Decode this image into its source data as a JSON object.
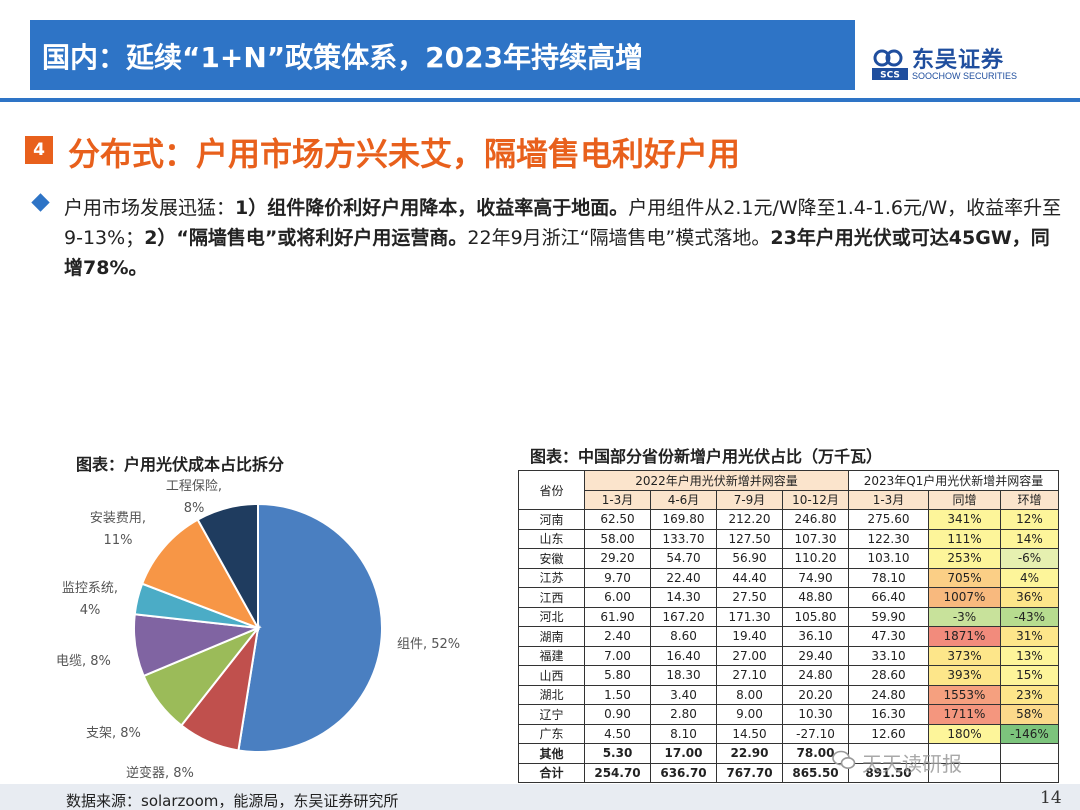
{
  "header": {
    "title": "国内：延续“1+N”政策体系，2023年持续高增",
    "logo_name": "东吴证券",
    "logo_en": "SOOCHOW SECURITIES",
    "logo_mark": "SCS",
    "brand_color": "#2e74c6",
    "accent_color": "#e8601c"
  },
  "section": {
    "number": "4",
    "title": "分布式：户用市场方兴未艾，隔墙售电利好户用"
  },
  "bullet": {
    "icon": "diamond-bullet-icon",
    "part1": "户用市场发展迅猛：",
    "part2": "1）组件降价利好户用降本，收益率高于地面。",
    "part3": "户用组件从2.1元/W降至1.4-1.6元/W，收益率升至9-13%；",
    "part4": "2）“隔墙售电”或将利好户用运营商。",
    "part5": "22年9月浙江“隔墙售电”模式落地。",
    "part6": "23年户用光伏或可达45GW，同增78%。"
  },
  "pie": {
    "title": "图表：户用光伏成本占比拆分",
    "chart_data": {
      "type": "pie",
      "title": "图表：户用光伏成本占比拆分",
      "slices": [
        {
          "label": "组件",
          "value": 52,
          "display": "组件, 52%",
          "color": "#4a7fc1"
        },
        {
          "label": "逆变器",
          "value": 8,
          "display": "逆变器, 8%",
          "color": "#c0504d"
        },
        {
          "label": "支架",
          "value": 8,
          "display": "支架, 8%",
          "color": "#9bbb59"
        },
        {
          "label": "电缆",
          "value": 8,
          "display": "电缆, 8%",
          "color": "#8064a2"
        },
        {
          "label": "监控系统",
          "value": 4,
          "display": "监控系统, 4%",
          "color": "#4bacc6"
        },
        {
          "label": "安装费用",
          "value": 11,
          "display": "安装费用, 11%",
          "color": "#f79646"
        },
        {
          "label": "工程保险",
          "value": 8,
          "display": "工程保险, 8%",
          "color": "#1f3c5f"
        }
      ]
    }
  },
  "table": {
    "title": "图表：中国部分省份新增户用光伏占比（万千瓦）",
    "head": {
      "province": "省份",
      "group2022": "2022年户用光伏新增并网容量",
      "group2023": "2023年Q1户用光伏新增并网容量",
      "q1": "1-3月",
      "q2": "4-6月",
      "q3": "7-9月",
      "q4": "10-12月",
      "q1_2023": "1-3月",
      "yoy": "同增",
      "qoq": "环增"
    },
    "rows": [
      {
        "p": "河南",
        "a": "62.50",
        "b": "169.80",
        "c": "212.20",
        "d": "246.80",
        "e": "275.60",
        "yoy": "341%",
        "qoq": "12%",
        "yoy_c": "#fdf59a",
        "qoq_c": "#fdf59a"
      },
      {
        "p": "山东",
        "a": "58.00",
        "b": "133.70",
        "c": "127.50",
        "d": "107.30",
        "e": "122.30",
        "yoy": "111%",
        "qoq": "14%",
        "yoy_c": "#fdf59a",
        "qoq_c": "#fdf59a"
      },
      {
        "p": "安徽",
        "a": "29.20",
        "b": "54.70",
        "c": "56.90",
        "d": "110.20",
        "e": "103.10",
        "yoy": "253%",
        "qoq": "-6%",
        "yoy_c": "#fdf59a",
        "qoq_c": "#e6f0b0"
      },
      {
        "p": "江苏",
        "a": "9.70",
        "b": "22.40",
        "c": "44.40",
        "d": "74.90",
        "e": "78.10",
        "yoy": "705%",
        "qoq": "4%",
        "yoy_c": "#fbcf86",
        "qoq_c": "#fdf59a"
      },
      {
        "p": "江西",
        "a": "6.00",
        "b": "14.30",
        "c": "27.50",
        "d": "48.80",
        "e": "66.40",
        "yoy": "1007%",
        "qoq": "36%",
        "yoy_c": "#f8b97e",
        "qoq_c": "#fde68a"
      },
      {
        "p": "河北",
        "a": "61.90",
        "b": "167.20",
        "c": "171.30",
        "d": "105.80",
        "e": "59.90",
        "yoy": "-3%",
        "qoq": "-43%",
        "yoy_c": "#c8e29b",
        "qoq_c": "#b7dc8f"
      },
      {
        "p": "湖南",
        "a": "2.40",
        "b": "8.60",
        "c": "19.40",
        "d": "36.10",
        "e": "47.30",
        "yoy": "1871%",
        "qoq": "31%",
        "yoy_c": "#f28b7c",
        "qoq_c": "#fde68a"
      },
      {
        "p": "福建",
        "a": "7.00",
        "b": "16.40",
        "c": "27.00",
        "d": "29.40",
        "e": "33.10",
        "yoy": "373%",
        "qoq": "13%",
        "yoy_c": "#fde68a",
        "qoq_c": "#fdf59a"
      },
      {
        "p": "山西",
        "a": "5.80",
        "b": "18.30",
        "c": "27.10",
        "d": "24.80",
        "e": "28.60",
        "yoy": "393%",
        "qoq": "15%",
        "yoy_c": "#fde68a",
        "qoq_c": "#fdf59a"
      },
      {
        "p": "湖北",
        "a": "1.50",
        "b": "3.40",
        "c": "8.00",
        "d": "20.20",
        "e": "24.80",
        "yoy": "1553%",
        "qoq": "23%",
        "yoy_c": "#f5a07f",
        "qoq_c": "#fde68a"
      },
      {
        "p": "辽宁",
        "a": "0.90",
        "b": "2.80",
        "c": "9.00",
        "d": "10.30",
        "e": "16.30",
        "yoy": "1711%",
        "qoq": "58%",
        "yoy_c": "#f4967e",
        "qoq_c": "#fcd98a"
      },
      {
        "p": "广东",
        "a": "4.50",
        "b": "8.10",
        "c": "14.50",
        "d": "-27.10",
        "e": "12.60",
        "yoy": "180%",
        "qoq": "-146%",
        "yoy_c": "#fdf59a",
        "qoq_c": "#7cc47c"
      },
      {
        "p": "其他",
        "a": "5.30",
        "b": "17.00",
        "c": "22.90",
        "d": "78.00",
        "e": "",
        "yoy": "",
        "qoq": "",
        "yoy_c": "#ffffff",
        "qoq_c": "#ffffff"
      },
      {
        "p": "合计",
        "a": "254.70",
        "b": "636.70",
        "c": "767.70",
        "d": "865.50",
        "e": "891.50",
        "yoy": "",
        "qoq": "",
        "yoy_c": "#ffffff",
        "qoq_c": "#ffffff"
      }
    ]
  },
  "footer": {
    "source": "数据来源：solarzoom，能源局，东吴证券研究所",
    "page": "14",
    "watermark": "天天读研报"
  }
}
